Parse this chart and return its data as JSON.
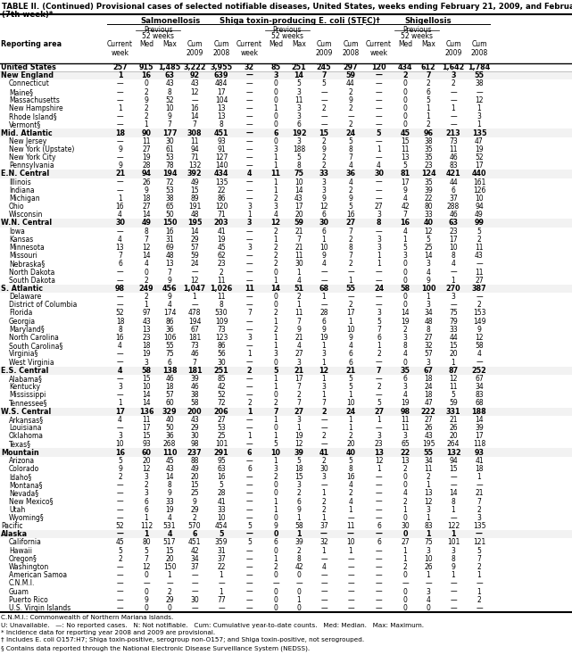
{
  "title_line1": "TABLE II. (Continued) Provisional cases of selected notifiable diseases, United States, weeks ending February 21, 2009, and February 16, 2008",
  "title_line2": "(7th week)*",
  "col_groups": [
    "Salmonellosis",
    "Shiga toxin-producing E. coli (STEC)†",
    "Shigellosis"
  ],
  "footer_lines": [
    "C.N.M.I.: Commonwealth of Northern Mariana Islands.",
    "U: Unavailable.   —: No reported cases.   N: Not notifiable.   Cum: Cumulative year-to-date counts.   Med: Median.   Max: Maximum.",
    "* Incidence data for reporting year 2008 and 2009 are provisional.",
    "† Includes E. coli O157:H7; Shiga toxin-positive, serogroup non-O157; and Shiga toxin-positive, not serogrouped.",
    "§ Contains data reported through the National Electronic Disease Surveillance System (NEDSS)."
  ],
  "rows": [
    [
      "United States",
      "257",
      "915",
      "1,485",
      "3,222",
      "3,955",
      "32",
      "85",
      "251",
      "245",
      "297",
      "120",
      "434",
      "612",
      "1,642",
      "1,784"
    ],
    [
      "New England",
      "1",
      "16",
      "63",
      "92",
      "639",
      "—",
      "3",
      "14",
      "7",
      "59",
      "—",
      "2",
      "7",
      "3",
      "55"
    ],
    [
      "Connecticut",
      "—",
      "0",
      "43",
      "43",
      "484",
      "—",
      "0",
      "5",
      "5",
      "44",
      "—",
      "0",
      "2",
      "2",
      "38"
    ],
    [
      "Maine§",
      "—",
      "2",
      "8",
      "12",
      "17",
      "—",
      "0",
      "3",
      "—",
      "2",
      "—",
      "0",
      "6",
      "—",
      "—"
    ],
    [
      "Massachusetts",
      "—",
      "9",
      "52",
      "—",
      "104",
      "—",
      "0",
      "11",
      "—",
      "9",
      "—",
      "0",
      "5",
      "—",
      "12"
    ],
    [
      "New Hampshire",
      "1",
      "2",
      "10",
      "16",
      "13",
      "—",
      "1",
      "3",
      "2",
      "2",
      "—",
      "0",
      "1",
      "1",
      "1"
    ],
    [
      "Rhode Island§",
      "—",
      "2",
      "9",
      "14",
      "13",
      "—",
      "0",
      "3",
      "—",
      "—",
      "—",
      "0",
      "1",
      "—",
      "3"
    ],
    [
      "Vermont§",
      "—",
      "1",
      "7",
      "7",
      "8",
      "—",
      "0",
      "6",
      "—",
      "2",
      "—",
      "0",
      "2",
      "—",
      "1"
    ],
    [
      "Mid. Atlantic",
      "18",
      "90",
      "177",
      "308",
      "451",
      "—",
      "6",
      "192",
      "15",
      "24",
      "5",
      "45",
      "96",
      "213",
      "135"
    ],
    [
      "New Jersey",
      "—",
      "11",
      "30",
      "11",
      "93",
      "—",
      "0",
      "3",
      "2",
      "5",
      "—",
      "15",
      "38",
      "73",
      "47"
    ],
    [
      "New York (Upstate)",
      "9",
      "27",
      "61",
      "94",
      "91",
      "—",
      "3",
      "188",
      "9",
      "8",
      "1",
      "11",
      "35",
      "11",
      "19"
    ],
    [
      "New York City",
      "—",
      "19",
      "53",
      "71",
      "127",
      "—",
      "1",
      "5",
      "2",
      "7",
      "—",
      "13",
      "35",
      "46",
      "52"
    ],
    [
      "Pennsylvania",
      "9",
      "28",
      "78",
      "132",
      "140",
      "—",
      "1",
      "8",
      "2",
      "4",
      "4",
      "5",
      "23",
      "83",
      "17"
    ],
    [
      "E.N. Central",
      "21",
      "94",
      "194",
      "392",
      "434",
      "4",
      "11",
      "75",
      "33",
      "36",
      "30",
      "81",
      "124",
      "421",
      "440"
    ],
    [
      "Illinois",
      "—",
      "26",
      "72",
      "49",
      "135",
      "—",
      "1",
      "10",
      "3",
      "4",
      "—",
      "17",
      "35",
      "44",
      "161"
    ],
    [
      "Indiana",
      "—",
      "9",
      "53",
      "15",
      "22",
      "—",
      "1",
      "14",
      "3",
      "2",
      "—",
      "9",
      "39",
      "6",
      "126"
    ],
    [
      "Michigan",
      "1",
      "18",
      "38",
      "89",
      "86",
      "—",
      "2",
      "43",
      "9",
      "9",
      "—",
      "4",
      "22",
      "37",
      "10"
    ],
    [
      "Ohio",
      "16",
      "27",
      "65",
      "191",
      "120",
      "3",
      "3",
      "17",
      "12",
      "5",
      "27",
      "42",
      "80",
      "288",
      "94"
    ],
    [
      "Wisconsin",
      "4",
      "14",
      "50",
      "48",
      "71",
      "1",
      "4",
      "20",
      "6",
      "16",
      "3",
      "7",
      "33",
      "46",
      "49"
    ],
    [
      "W.N. Central",
      "30",
      "49",
      "150",
      "195",
      "203",
      "3",
      "12",
      "59",
      "30",
      "27",
      "8",
      "16",
      "40",
      "63",
      "99"
    ],
    [
      "Iowa",
      "—",
      "8",
      "16",
      "14",
      "41",
      "—",
      "2",
      "21",
      "6",
      "7",
      "—",
      "4",
      "12",
      "23",
      "5"
    ],
    [
      "Kansas",
      "4",
      "7",
      "31",
      "29",
      "19",
      "—",
      "1",
      "7",
      "1",
      "2",
      "3",
      "1",
      "5",
      "17",
      "2"
    ],
    [
      "Minnesota",
      "13",
      "12",
      "69",
      "57",
      "45",
      "3",
      "2",
      "21",
      "10",
      "8",
      "3",
      "5",
      "25",
      "10",
      "11"
    ],
    [
      "Missouri",
      "7",
      "14",
      "48",
      "59",
      "62",
      "—",
      "2",
      "11",
      "9",
      "7",
      "1",
      "3",
      "14",
      "8",
      "43"
    ],
    [
      "Nebraska§",
      "6",
      "4",
      "13",
      "24",
      "23",
      "—",
      "2",
      "30",
      "4",
      "2",
      "1",
      "0",
      "3",
      "4",
      "—"
    ],
    [
      "North Dakota",
      "—",
      "0",
      "7",
      "—",
      "2",
      "—",
      "0",
      "1",
      "—",
      "—",
      "—",
      "0",
      "4",
      "—",
      "11"
    ],
    [
      "South Dakota",
      "—",
      "2",
      "9",
      "12",
      "11",
      "—",
      "1",
      "4",
      "—",
      "1",
      "—",
      "0",
      "9",
      "1",
      "27"
    ],
    [
      "S. Atlantic",
      "98",
      "249",
      "456",
      "1,047",
      "1,026",
      "11",
      "14",
      "51",
      "68",
      "55",
      "24",
      "58",
      "100",
      "270",
      "387"
    ],
    [
      "Delaware",
      "—",
      "2",
      "9",
      "1",
      "11",
      "—",
      "0",
      "2",
      "1",
      "—",
      "—",
      "0",
      "1",
      "3",
      "—"
    ],
    [
      "District of Columbia",
      "—",
      "1",
      "4",
      "—",
      "8",
      "—",
      "0",
      "1",
      "—",
      "2",
      "—",
      "0",
      "3",
      "—",
      "2"
    ],
    [
      "Florida",
      "52",
      "97",
      "174",
      "478",
      "530",
      "7",
      "2",
      "11",
      "28",
      "17",
      "3",
      "14",
      "34",
      "75",
      "153"
    ],
    [
      "Georgia",
      "18",
      "43",
      "86",
      "194",
      "109",
      "—",
      "1",
      "7",
      "6",
      "1",
      "5",
      "19",
      "48",
      "79",
      "149"
    ],
    [
      "Maryland§",
      "8",
      "13",
      "36",
      "67",
      "73",
      "—",
      "2",
      "9",
      "9",
      "10",
      "7",
      "2",
      "8",
      "33",
      "9"
    ],
    [
      "North Carolina",
      "16",
      "23",
      "106",
      "181",
      "123",
      "3",
      "1",
      "21",
      "19",
      "9",
      "6",
      "3",
      "27",
      "44",
      "12"
    ],
    [
      "South Carolina§",
      "4",
      "18",
      "55",
      "73",
      "86",
      "—",
      "1",
      "4",
      "1",
      "4",
      "1",
      "8",
      "32",
      "15",
      "58"
    ],
    [
      "Virginia§",
      "—",
      "19",
      "75",
      "46",
      "56",
      "1",
      "3",
      "27",
      "3",
      "6",
      "2",
      "4",
      "57",
      "20",
      "4"
    ],
    [
      "West Virginia",
      "—",
      "3",
      "6",
      "7",
      "30",
      "—",
      "0",
      "3",
      "1",
      "6",
      "—",
      "0",
      "3",
      "1",
      "—"
    ],
    [
      "E.S. Central",
      "4",
      "58",
      "138",
      "181",
      "251",
      "2",
      "5",
      "21",
      "12",
      "21",
      "7",
      "35",
      "67",
      "87",
      "252"
    ],
    [
      "Alabama§",
      "—",
      "15",
      "46",
      "39",
      "85",
      "—",
      "1",
      "17",
      "1",
      "5",
      "—",
      "6",
      "18",
      "12",
      "67"
    ],
    [
      "Kentucky",
      "3",
      "10",
      "18",
      "46",
      "42",
      "—",
      "1",
      "7",
      "3",
      "5",
      "2",
      "3",
      "24",
      "11",
      "34"
    ],
    [
      "Mississippi",
      "—",
      "14",
      "57",
      "38",
      "52",
      "—",
      "0",
      "2",
      "1",
      "1",
      "—",
      "4",
      "18",
      "5",
      "83"
    ],
    [
      "Tennessee§",
      "1",
      "14",
      "60",
      "58",
      "72",
      "2",
      "2",
      "7",
      "7",
      "10",
      "5",
      "19",
      "47",
      "59",
      "68"
    ],
    [
      "W.S. Central",
      "17",
      "136",
      "329",
      "200",
      "206",
      "1",
      "7",
      "27",
      "2",
      "24",
      "27",
      "98",
      "222",
      "331",
      "188"
    ],
    [
      "Arkansas§",
      "4",
      "11",
      "40",
      "43",
      "27",
      "—",
      "1",
      "3",
      "—",
      "1",
      "1",
      "11",
      "27",
      "21",
      "14"
    ],
    [
      "Louisiana",
      "—",
      "17",
      "50",
      "29",
      "53",
      "—",
      "0",
      "1",
      "—",
      "1",
      "—",
      "11",
      "26",
      "26",
      "39"
    ],
    [
      "Oklahoma",
      "3",
      "15",
      "36",
      "30",
      "25",
      "1",
      "1",
      "19",
      "2",
      "2",
      "3",
      "3",
      "43",
      "20",
      "17"
    ],
    [
      "Texas§",
      "10",
      "93",
      "268",
      "98",
      "101",
      "—",
      "5",
      "12",
      "—",
      "20",
      "23",
      "65",
      "195",
      "264",
      "118"
    ],
    [
      "Mountain",
      "16",
      "60",
      "110",
      "237",
      "291",
      "6",
      "10",
      "39",
      "41",
      "40",
      "13",
      "22",
      "55",
      "132",
      "93"
    ],
    [
      "Arizona",
      "5",
      "20",
      "45",
      "88",
      "95",
      "—",
      "1",
      "5",
      "2",
      "5",
      "12",
      "13",
      "34",
      "94",
      "41"
    ],
    [
      "Colorado",
      "9",
      "12",
      "43",
      "49",
      "63",
      "6",
      "3",
      "18",
      "30",
      "8",
      "1",
      "2",
      "11",
      "15",
      "18"
    ],
    [
      "Idaho§",
      "2",
      "3",
      "14",
      "20",
      "16",
      "—",
      "2",
      "15",
      "3",
      "16",
      "—",
      "0",
      "2",
      "—",
      "1"
    ],
    [
      "Montana§",
      "—",
      "2",
      "8",
      "15",
      "5",
      "—",
      "0",
      "3",
      "—",
      "4",
      "—",
      "0",
      "1",
      "—",
      "—"
    ],
    [
      "Nevada§",
      "—",
      "3",
      "9",
      "25",
      "28",
      "—",
      "0",
      "2",
      "1",
      "2",
      "—",
      "4",
      "13",
      "14",
      "21"
    ],
    [
      "New Mexico§",
      "—",
      "6",
      "33",
      "9",
      "41",
      "—",
      "1",
      "6",
      "2",
      "4",
      "—",
      "2",
      "12",
      "8",
      "7"
    ],
    [
      "Utah",
      "—",
      "6",
      "19",
      "29",
      "33",
      "—",
      "1",
      "9",
      "2",
      "1",
      "—",
      "1",
      "3",
      "1",
      "2"
    ],
    [
      "Wyoming§",
      "—",
      "1",
      "4",
      "2",
      "10",
      "—",
      "0",
      "1",
      "1",
      "—",
      "—",
      "0",
      "1",
      "—",
      "3"
    ],
    [
      "Pacific",
      "52",
      "112",
      "531",
      "570",
      "454",
      "5",
      "9",
      "58",
      "37",
      "11",
      "6",
      "30",
      "83",
      "122",
      "135"
    ],
    [
      "Alaska",
      "—",
      "1",
      "4",
      "6",
      "5",
      "—",
      "0",
      "1",
      "—",
      "—",
      "—",
      "0",
      "1",
      "1",
      "—"
    ],
    [
      "California",
      "45",
      "80",
      "517",
      "451",
      "359",
      "5",
      "6",
      "39",
      "32",
      "10",
      "6",
      "27",
      "75",
      "101",
      "121"
    ],
    [
      "Hawaii",
      "5",
      "5",
      "15",
      "42",
      "31",
      "—",
      "0",
      "2",
      "1",
      "1",
      "—",
      "1",
      "3",
      "3",
      "5"
    ],
    [
      "Oregon§",
      "2",
      "7",
      "20",
      "34",
      "37",
      "—",
      "1",
      "8",
      "—",
      "—",
      "—",
      "1",
      "10",
      "8",
      "7"
    ],
    [
      "Washington",
      "—",
      "12",
      "150",
      "37",
      "22",
      "—",
      "2",
      "42",
      "4",
      "—",
      "—",
      "2",
      "26",
      "9",
      "2"
    ],
    [
      "American Samoa",
      "—",
      "0",
      "1",
      "—",
      "1",
      "—",
      "0",
      "0",
      "—",
      "—",
      "—",
      "0",
      "1",
      "1",
      "1"
    ],
    [
      "C.N.M.I.",
      "—",
      "—",
      "—",
      "—",
      "—",
      "—",
      "—",
      "—",
      "—",
      "—",
      "—",
      "—",
      "—",
      "—",
      "—"
    ],
    [
      "Guam",
      "—",
      "0",
      "2",
      "—",
      "1",
      "—",
      "0",
      "0",
      "—",
      "—",
      "—",
      "0",
      "3",
      "—",
      "1"
    ],
    [
      "Puerto Rico",
      "—",
      "9",
      "29",
      "30",
      "77",
      "—",
      "0",
      "1",
      "—",
      "—",
      "—",
      "0",
      "4",
      "—",
      "2"
    ],
    [
      "U.S. Virgin Islands",
      "—",
      "0",
      "0",
      "—",
      "—",
      "—",
      "0",
      "0",
      "—",
      "—",
      "—",
      "0",
      "0",
      "—",
      "—"
    ]
  ],
  "bold_rows": [
    0,
    1,
    8,
    13,
    19,
    27,
    37,
    42,
    47,
    57
  ],
  "indented_rows": [
    2,
    3,
    4,
    5,
    6,
    7,
    9,
    10,
    11,
    12,
    14,
    15,
    16,
    17,
    18,
    20,
    21,
    22,
    23,
    24,
    25,
    26,
    28,
    29,
    30,
    31,
    32,
    33,
    34,
    35,
    36,
    38,
    39,
    40,
    41,
    43,
    44,
    45,
    46,
    48,
    49,
    50,
    51,
    52,
    53,
    54,
    55,
    58,
    59,
    60,
    61,
    62,
    63,
    64,
    65,
    66,
    67
  ]
}
